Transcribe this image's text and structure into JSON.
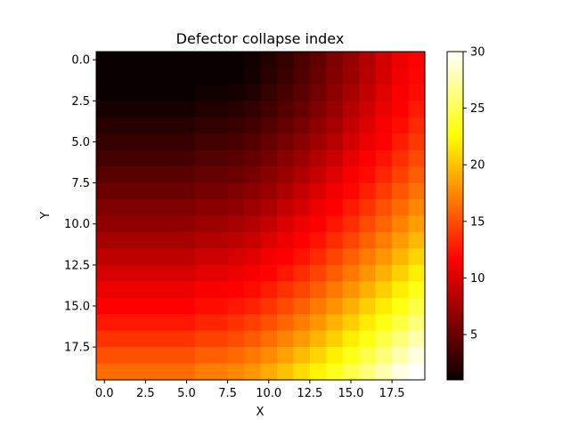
{
  "chart_data": {
    "type": "heatmap",
    "title": "Defector collapse index",
    "xlabel": "X",
    "ylabel": "Y",
    "colormap": "hot",
    "grid": false,
    "x_range": [
      -0.5,
      19.5
    ],
    "y_range": [
      -0.5,
      19.5
    ],
    "y_inverted": true,
    "x_ticks": [
      0.0,
      2.5,
      5.0,
      7.5,
      10.0,
      12.5,
      15.0,
      17.5
    ],
    "x_tick_labels": [
      "0.0",
      "2.5",
      "5.0",
      "7.5",
      "10.0",
      "12.5",
      "15.0",
      "17.5"
    ],
    "y_ticks": [
      0.0,
      2.5,
      5.0,
      7.5,
      10.0,
      12.5,
      15.0,
      17.5
    ],
    "y_tick_labels": [
      "0.0",
      "2.5",
      "5.0",
      "7.5",
      "10.0",
      "12.5",
      "15.0",
      "17.5"
    ],
    "colorbar": {
      "min": 1,
      "max": 30,
      "ticks": [
        5,
        10,
        15,
        20,
        25,
        30
      ],
      "tick_labels": [
        "5",
        "10",
        "15",
        "20",
        "25",
        "30"
      ]
    },
    "x_bins": [
      0,
      6,
      8,
      9,
      10,
      11,
      12,
      13,
      14,
      15,
      16,
      17,
      18,
      19
    ],
    "y_bins": [
      0,
      1,
      2,
      3,
      4,
      5,
      6,
      7,
      8,
      9,
      10,
      11,
      12,
      13,
      14,
      15,
      16,
      17,
      18,
      19
    ],
    "values": [
      [
        1.0,
        1.0,
        1.0,
        1.3,
        2.0,
        2.7,
        3.7,
        4.6,
        5.8,
        6.8,
        8.0,
        9.3,
        10.5,
        11.5
      ],
      [
        1.0,
        1.0,
        1.0,
        1.5,
        2.3,
        3.0,
        3.9,
        4.9,
        6.0,
        7.0,
        8.2,
        9.5,
        10.7,
        11.8
      ],
      [
        1.0,
        1.3,
        1.6,
        2.0,
        2.7,
        3.5,
        4.3,
        5.3,
        6.4,
        7.5,
        8.6,
        9.8,
        11.0,
        12.1
      ],
      [
        1.5,
        2.0,
        2.2,
        2.6,
        3.3,
        4.0,
        4.8,
        5.8,
        6.8,
        8.0,
        9.1,
        10.3,
        11.5,
        12.7
      ],
      [
        2.2,
        2.6,
        2.9,
        3.3,
        4.0,
        4.7,
        5.5,
        6.5,
        7.5,
        8.6,
        9.7,
        10.9,
        12.1,
        13.3
      ],
      [
        2.8,
        3.3,
        3.6,
        4.0,
        4.7,
        5.4,
        6.2,
        7.2,
        8.2,
        9.3,
        10.4,
        11.6,
        12.8,
        14.0
      ],
      [
        3.5,
        4.0,
        4.3,
        4.7,
        5.4,
        6.2,
        7.0,
        8.0,
        9.0,
        10.1,
        11.2,
        12.4,
        13.6,
        14.8
      ],
      [
        4.2,
        4.7,
        5.0,
        5.5,
        6.2,
        7.0,
        7.8,
        8.8,
        9.8,
        10.9,
        12.0,
        13.2,
        14.4,
        15.6
      ],
      [
        5.0,
        5.5,
        5.8,
        6.3,
        7.0,
        7.8,
        8.7,
        9.6,
        10.7,
        11.8,
        12.9,
        14.1,
        15.3,
        16.5
      ],
      [
        5.8,
        6.3,
        6.6,
        7.1,
        7.8,
        8.7,
        9.5,
        10.5,
        11.6,
        12.7,
        13.8,
        15.0,
        16.2,
        17.5
      ],
      [
        6.6,
        7.1,
        7.5,
        8.0,
        8.7,
        9.6,
        10.5,
        11.4,
        12.5,
        13.6,
        14.8,
        16.0,
        17.2,
        18.5
      ],
      [
        7.5,
        8.0,
        8.4,
        8.9,
        9.7,
        10.5,
        11.4,
        12.4,
        13.5,
        14.6,
        15.8,
        17.0,
        18.3,
        19.6
      ],
      [
        8.4,
        9.0,
        9.4,
        9.9,
        10.7,
        11.5,
        12.4,
        13.4,
        14.5,
        15.7,
        16.9,
        18.1,
        19.4,
        20.8
      ],
      [
        9.4,
        10.0,
        10.4,
        10.9,
        11.7,
        12.6,
        13.5,
        14.5,
        15.6,
        16.8,
        18.0,
        19.3,
        20.6,
        22.0
      ],
      [
        10.4,
        11.0,
        11.4,
        12.0,
        12.8,
        13.7,
        14.6,
        15.7,
        16.8,
        18.0,
        19.2,
        20.5,
        21.9,
        23.3
      ],
      [
        11.5,
        12.1,
        12.5,
        13.1,
        13.9,
        14.8,
        15.8,
        16.9,
        18.0,
        19.2,
        20.5,
        21.8,
        23.2,
        24.7
      ],
      [
        12.6,
        13.2,
        13.7,
        14.3,
        15.1,
        16.0,
        17.0,
        18.1,
        19.3,
        20.5,
        21.8,
        23.2,
        24.6,
        26.1
      ],
      [
        13.8,
        14.4,
        14.9,
        15.5,
        16.3,
        17.3,
        18.3,
        19.4,
        20.6,
        21.9,
        23.2,
        24.6,
        26.1,
        27.6
      ],
      [
        15.0,
        15.7,
        16.2,
        16.8,
        17.6,
        18.6,
        19.7,
        20.8,
        22.0,
        23.3,
        24.7,
        26.1,
        27.6,
        29.1
      ],
      [
        16.3,
        17.0,
        17.5,
        18.1,
        19.0,
        20.0,
        21.1,
        22.2,
        23.5,
        24.8,
        26.2,
        27.7,
        29.2,
        30.0
      ]
    ]
  }
}
